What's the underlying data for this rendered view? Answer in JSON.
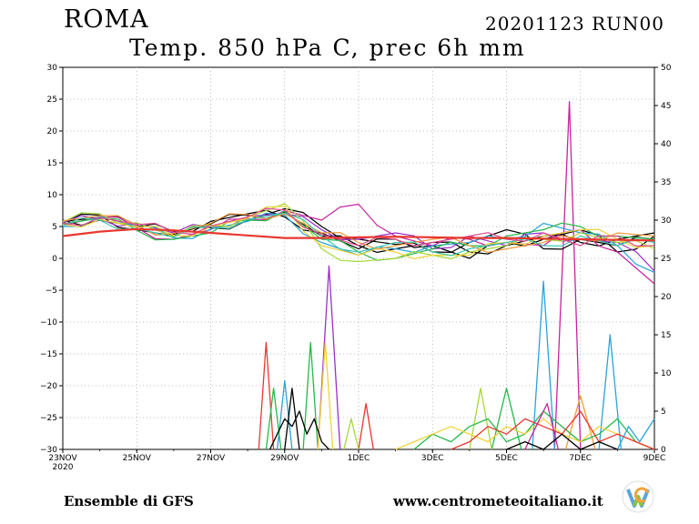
{
  "header": {
    "city": "ROMA",
    "run": "20201123 RUN00",
    "subtitle": "Temp. 850 hPa C, prec 6h mm"
  },
  "footer": {
    "model": "Ensemble di GFS",
    "site": "www.centrometeoitaliano.it"
  },
  "logo": {
    "icon": "centrometeo-logo-icon",
    "colors": [
      "#5aa6dc",
      "#8cc43c",
      "#f2a23c"
    ]
  },
  "chart_data": {
    "type": "line",
    "x_start_day": 23,
    "x_range_days": [
      0,
      16
    ],
    "x_ticks": [
      {
        "day": 0,
        "label": "23NOV"
      },
      {
        "day": 2,
        "label": "25NOV"
      },
      {
        "day": 4,
        "label": "27NOV"
      },
      {
        "day": 6,
        "label": "29NOV"
      },
      {
        "day": 8,
        "label": "1DEC"
      },
      {
        "day": 10,
        "label": "3DEC"
      },
      {
        "day": 12,
        "label": "5DEC"
      },
      {
        "day": 14,
        "label": "7DEC"
      },
      {
        "day": 16,
        "label": "9DEC"
      }
    ],
    "x_year_label": "2020",
    "y_left": {
      "min": -30,
      "max": 30,
      "ticks": [
        30,
        25,
        20,
        15,
        10,
        5,
        0,
        -5,
        -10,
        -15,
        -20,
        -25,
        -30
      ]
    },
    "y_right": {
      "min": 0,
      "max": 50,
      "ticks": [
        50,
        45,
        40,
        35,
        30,
        25,
        20,
        15,
        10,
        5,
        0
      ]
    },
    "grid": true,
    "temp_series": [
      {
        "color": "#e8372f",
        "width": 2.2,
        "x": [
          0,
          1,
          2,
          3,
          4,
          5,
          6,
          7,
          8,
          9,
          10,
          11,
          12,
          13,
          14,
          15,
          16
        ],
        "y": [
          3.5,
          4.2,
          4.6,
          4.4,
          4.0,
          3.6,
          3.2,
          3.2,
          3.3,
          3.4,
          3.3,
          3.2,
          3.2,
          3.1,
          3.0,
          2.9,
          2.8
        ]
      },
      {
        "color": "#000000",
        "width": 1.2,
        "x": [
          0,
          1,
          2,
          3,
          4,
          5,
          6,
          7,
          8,
          9,
          10,
          11,
          12,
          13,
          14,
          15,
          16
        ],
        "y": [
          5.8,
          6.4,
          5.2,
          3.8,
          5.4,
          6.8,
          7.2,
          3.5,
          2.0,
          1.5,
          2.5,
          1.0,
          2.0,
          3.5,
          2.5,
          3.0,
          4.0
        ]
      },
      {
        "color": "#000000",
        "width": 1.2,
        "x": [
          0,
          1,
          2,
          3,
          4,
          5,
          6,
          7,
          8,
          9,
          10,
          11,
          12,
          13,
          14,
          15,
          16
        ],
        "y": [
          5.5,
          6.8,
          4.5,
          3.5,
          4.8,
          6.0,
          7.8,
          5.0,
          3.0,
          2.2,
          1.0,
          2.5,
          4.5,
          1.5,
          3.0,
          2.0,
          3.0
        ]
      },
      {
        "color": "#000000",
        "width": 1.2,
        "x": [
          0,
          1,
          2,
          3,
          4,
          5,
          6,
          7,
          8,
          9,
          10,
          11,
          12,
          13,
          14,
          15,
          16
        ],
        "y": [
          6.0,
          6.0,
          5.0,
          4.2,
          5.8,
          7.0,
          6.5,
          4.0,
          1.5,
          3.0,
          2.0,
          0.0,
          2.5,
          3.0,
          4.5,
          1.0,
          3.5
        ]
      },
      {
        "color": "#c7239e",
        "width": 1.2,
        "x": [
          0,
          1,
          2,
          3,
          4,
          5,
          6,
          7,
          8,
          9,
          10,
          11,
          12,
          13,
          14,
          15,
          16
        ],
        "y": [
          5.2,
          6.5,
          4.8,
          3.0,
          4.5,
          6.2,
          7.5,
          6.0,
          8.5,
          3.5,
          2.0,
          3.0,
          2.5,
          2.0,
          4.5,
          1.0,
          -4.0
        ]
      },
      {
        "color": "#9b30c8",
        "width": 1.2,
        "x": [
          0,
          1,
          2,
          3,
          4,
          5,
          6,
          7,
          8,
          9,
          10,
          11,
          12,
          13,
          14,
          15,
          16
        ],
        "y": [
          5.6,
          6.2,
          5.5,
          4.0,
          5.0,
          6.6,
          7.0,
          4.5,
          3.0,
          4.0,
          1.5,
          3.5,
          2.0,
          4.0,
          3.0,
          2.5,
          -2.0
        ]
      },
      {
        "color": "#2aa3d8",
        "width": 1.2,
        "x": [
          0,
          1,
          2,
          3,
          4,
          5,
          6,
          7,
          8,
          9,
          10,
          11,
          12,
          13,
          14,
          15,
          16
        ],
        "y": [
          5.0,
          6.6,
          5.0,
          3.2,
          4.6,
          5.8,
          6.8,
          2.5,
          0.5,
          1.5,
          2.0,
          2.5,
          3.0,
          5.5,
          4.0,
          2.0,
          -2.2
        ]
      },
      {
        "color": "#27b84a",
        "width": 1.2,
        "x": [
          0,
          1,
          2,
          3,
          4,
          5,
          6,
          7,
          8,
          9,
          10,
          11,
          12,
          13,
          14,
          15,
          16
        ],
        "y": [
          5.4,
          6.3,
          4.4,
          3.0,
          4.0,
          6.0,
          7.4,
          3.0,
          1.0,
          0.0,
          1.5,
          2.0,
          3.5,
          4.5,
          5.0,
          3.5,
          3.0
        ]
      },
      {
        "color": "#a8d83a",
        "width": 1.2,
        "x": [
          0,
          1,
          2,
          3,
          4,
          5,
          6,
          7,
          8,
          9,
          10,
          11,
          12,
          13,
          14,
          15,
          16
        ],
        "y": [
          5.7,
          7.0,
          5.6,
          3.4,
          5.2,
          6.4,
          8.6,
          1.5,
          -0.5,
          0.0,
          0.5,
          1.0,
          2.0,
          3.0,
          4.0,
          2.5,
          1.5
        ]
      },
      {
        "color": "#f0d33a",
        "width": 1.2,
        "x": [
          0,
          1,
          2,
          3,
          4,
          5,
          6,
          7,
          8,
          9,
          10,
          11,
          12,
          13,
          14,
          15,
          16
        ],
        "y": [
          5.3,
          6.1,
          4.9,
          3.6,
          5.0,
          6.3,
          8.2,
          2.0,
          0.5,
          1.0,
          0.5,
          0.5,
          2.5,
          3.5,
          4.5,
          3.0,
          2.0
        ]
      },
      {
        "color": "#f29a3a",
        "width": 1.2,
        "x": [
          0,
          1,
          2,
          3,
          4,
          5,
          6,
          7,
          8,
          9,
          10,
          11,
          12,
          13,
          14,
          15,
          16
        ],
        "y": [
          5.9,
          6.7,
          5.1,
          3.9,
          5.5,
          6.9,
          7.0,
          4.0,
          2.5,
          2.0,
          3.0,
          2.0,
          1.5,
          2.5,
          3.0,
          4.0,
          3.5
        ]
      },
      {
        "color": "#3fc8b0",
        "width": 1.2,
        "x": [
          0,
          1,
          2,
          3,
          4,
          5,
          6,
          7,
          8,
          9,
          10,
          11,
          12,
          13,
          14,
          15,
          16
        ],
        "y": [
          5.1,
          6.0,
          4.7,
          3.3,
          4.9,
          6.1,
          7.1,
          3.5,
          1.0,
          2.5,
          1.0,
          1.5,
          2.5,
          2.0,
          3.5,
          2.0,
          2.5
        ]
      },
      {
        "color": "#e04a8a",
        "width": 1.2,
        "x": [
          0,
          1,
          2,
          3,
          4,
          5,
          6,
          7,
          8,
          9,
          10,
          11,
          12,
          13,
          14,
          15,
          16
        ],
        "y": [
          5.5,
          6.4,
          5.3,
          4.1,
          5.1,
          6.5,
          7.6,
          3.8,
          2.0,
          3.0,
          2.5,
          3.5,
          3.0,
          4.0,
          2.0,
          3.5,
          2.0
        ]
      }
    ],
    "precip_series": [
      {
        "color": "#c7239e",
        "x": [
          13.3,
          13.7,
          14.0
        ],
        "y": [
          0,
          45.5,
          0
        ]
      },
      {
        "color": "#9b30c8",
        "x": [
          6.9,
          7.2,
          7.5
        ],
        "y": [
          0,
          24,
          0
        ]
      },
      {
        "color": "#2aa3d8",
        "x": [
          12.7,
          13.0,
          13.3
        ],
        "y": [
          0,
          22,
          0
        ]
      },
      {
        "color": "#2aa3d8",
        "x": [
          14.5,
          14.8,
          15.1
        ],
        "y": [
          0,
          15,
          0
        ]
      },
      {
        "color": "#e8372f",
        "x": [
          5.3,
          5.5,
          5.7
        ],
        "y": [
          0,
          14,
          0
        ]
      },
      {
        "color": "#27b84a",
        "x": [
          6.5,
          6.7,
          6.9
        ],
        "y": [
          0,
          14,
          0
        ]
      },
      {
        "color": "#f0d33a",
        "x": [
          6.9,
          7.1,
          7.3
        ],
        "y": [
          0,
          14,
          0
        ]
      },
      {
        "color": "#27b84a",
        "x": [
          11.6,
          12.0,
          12.4
        ],
        "y": [
          0,
          8,
          0
        ]
      },
      {
        "color": "#a8d83a",
        "x": [
          11.0,
          11.3,
          11.6
        ],
        "y": [
          0,
          8,
          0
        ]
      },
      {
        "color": "#2aa3d8",
        "x": [
          5.8,
          6.0,
          6.2
        ],
        "y": [
          0,
          9,
          0
        ]
      },
      {
        "color": "#000000",
        "x": [
          6.0,
          6.2,
          6.4
        ],
        "y": [
          0,
          8,
          0
        ]
      },
      {
        "color": "#27b84a",
        "x": [
          5.5,
          5.7,
          5.9
        ],
        "y": [
          0,
          8,
          0
        ]
      },
      {
        "color": "#000000",
        "x": [
          5.6,
          5.8,
          6.0,
          6.2,
          6.4,
          6.6,
          6.8,
          7.0,
          7.2
        ],
        "y": [
          0,
          2,
          4,
          3,
          5,
          2,
          4,
          1,
          0
        ]
      },
      {
        "color": "#e8372f",
        "x": [
          8.0,
          8.2,
          8.4
        ],
        "y": [
          0,
          6,
          0
        ]
      },
      {
        "color": "#a8d83a",
        "x": [
          7.6,
          7.8,
          8.0
        ],
        "y": [
          0,
          4,
          0
        ]
      },
      {
        "color": "#f29a3a",
        "x": [
          13.6,
          14.0,
          14.4
        ],
        "y": [
          0,
          7,
          0
        ]
      },
      {
        "color": "#27b84a",
        "x": [
          9.5,
          10.0,
          10.5,
          11.0,
          11.5,
          12.0,
          12.5,
          13.0,
          13.5,
          14.0,
          14.5,
          15.0,
          15.5,
          16.0
        ],
        "y": [
          0,
          2,
          1,
          3,
          4,
          1,
          2,
          5,
          3,
          1,
          2,
          4,
          1,
          0
        ]
      },
      {
        "color": "#f0d33a",
        "x": [
          9.0,
          9.5,
          10.0,
          10.5,
          11.0,
          11.5,
          12.0,
          12.5,
          13.0,
          13.5,
          14.0,
          14.5,
          15.0,
          15.5,
          16.0
        ],
        "y": [
          0,
          1,
          2,
          3,
          2,
          1,
          3,
          2,
          4,
          2,
          1,
          3,
          2,
          1,
          0
        ]
      },
      {
        "color": "#e8372f",
        "x": [
          10.5,
          11.0,
          11.5,
          12.0,
          12.5,
          13.0,
          13.5,
          14.0,
          14.5,
          15.0,
          15.5,
          16.0
        ],
        "y": [
          0,
          1,
          3,
          2,
          4,
          3,
          2,
          5,
          1,
          2,
          1,
          0
        ]
      },
      {
        "color": "#2aa3d8",
        "x": [
          15.0,
          15.3,
          15.6,
          16.0
        ],
        "y": [
          0,
          3,
          1,
          4
        ]
      },
      {
        "color": "#c7239e",
        "x": [
          12.5,
          12.8,
          13.1,
          13.4
        ],
        "y": [
          0,
          3,
          6,
          0
        ]
      },
      {
        "color": "#000000",
        "x": [
          12.0,
          12.5,
          13.0,
          13.5,
          14.0,
          14.5,
          15.0
        ],
        "y": [
          0,
          1,
          0,
          2,
          0,
          1,
          0
        ]
      }
    ]
  }
}
